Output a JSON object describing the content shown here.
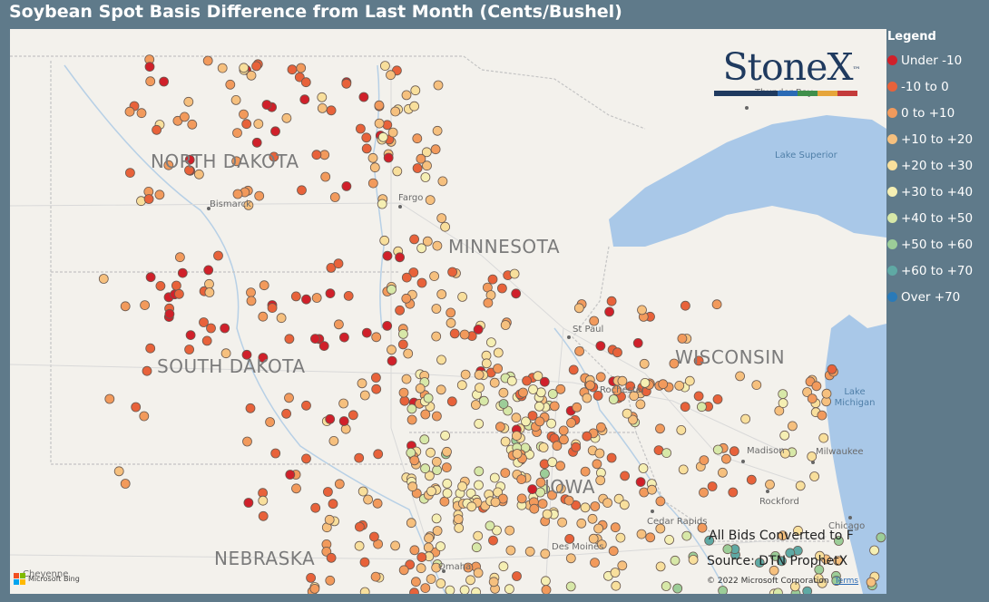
{
  "title": "Soybean Spot Basis Difference from Last Month (Cents/Bushel)",
  "legend": {
    "title": "Legend",
    "items": [
      {
        "label": "Under -10",
        "color": "#d0202a"
      },
      {
        "label": "-10 to 0",
        "color": "#e8623a"
      },
      {
        "label": "0 to +10",
        "color": "#f29a5c"
      },
      {
        "label": "+10 to +20",
        "color": "#f6c07e"
      },
      {
        "label": "+20 to +30",
        "color": "#f8df9c"
      },
      {
        "label": "+30 to +40",
        "color": "#f5efb3"
      },
      {
        "label": "+40 to +50",
        "color": "#d7e8a8"
      },
      {
        "label": "+50 to +60",
        "color": "#9ccd98"
      },
      {
        "label": "+60 to +70",
        "color": "#5fa9a4"
      },
      {
        "label": "Over +70",
        "color": "#2a7ab8"
      }
    ]
  },
  "map": {
    "states": [
      "NORTH DAKOTA",
      "SOUTH DAKOTA",
      "MINNESOTA",
      "WISCONSIN",
      "IOWA",
      "NEBRASKA"
    ],
    "cities": [
      "Bismarck",
      "Fargo",
      "St Paul",
      "Rochester",
      "Madison",
      "Milwaukee",
      "Rockford",
      "Chicago",
      "Cedar Rapids",
      "Des Moines",
      "Omaha",
      "Cheyenne",
      "Thunder Bay"
    ],
    "water": [
      "Lake Superior",
      "Lake Michigan"
    ]
  },
  "logo": {
    "text": "StoneX",
    "tm": "™"
  },
  "notes": {
    "bids": "All Bids Converted to F",
    "source": "Source: DTN ProphetX"
  },
  "attribution": {
    "copyright": "© 2022 Microsoft Corporation",
    "terms": "Terms",
    "provider": "Microsoft Bing"
  }
}
